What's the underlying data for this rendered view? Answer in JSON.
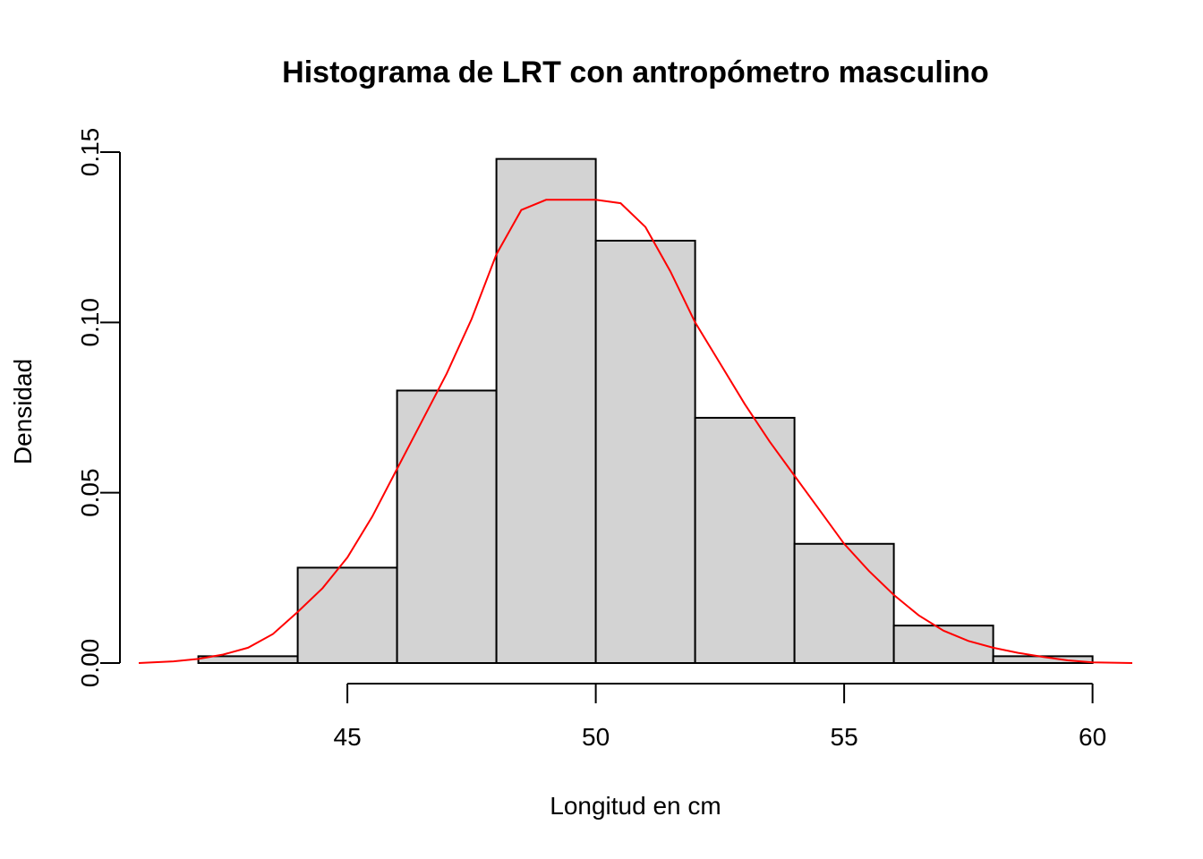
{
  "chart_data": {
    "type": "bar",
    "title": "Histograma de LRT con antropómetro masculino",
    "xlabel": "Longitud en cm",
    "ylabel": "Densidad",
    "xlim": [
      40.8,
      60.8
    ],
    "ylim": [
      0,
      0.15
    ],
    "x_ticks": [
      45,
      50,
      55,
      60
    ],
    "x_tick_labels": [
      "45",
      "50",
      "55",
      "60"
    ],
    "y_ticks": [
      0.0,
      0.05,
      0.1,
      0.15
    ],
    "y_tick_labels": [
      "0.00",
      "0.05",
      "0.10",
      "0.15"
    ],
    "grid": false,
    "bins": [
      {
        "x0": 42,
        "x1": 44,
        "density": 0.002
      },
      {
        "x0": 44,
        "x1": 46,
        "density": 0.028
      },
      {
        "x0": 46,
        "x1": 48,
        "density": 0.08
      },
      {
        "x0": 48,
        "x1": 50,
        "density": 0.148
      },
      {
        "x0": 50,
        "x1": 52,
        "density": 0.124
      },
      {
        "x0": 52,
        "x1": 54,
        "density": 0.072
      },
      {
        "x0": 54,
        "x1": 56,
        "density": 0.035
      },
      {
        "x0": 56,
        "x1": 58,
        "density": 0.011
      },
      {
        "x0": 58,
        "x1": 60,
        "density": 0.002
      }
    ],
    "bar_fill": "#d3d3d3",
    "density_curve": {
      "color": "#ff0000",
      "x": [
        40.8,
        41.5,
        42.0,
        42.5,
        43.0,
        43.5,
        44.0,
        44.5,
        45.0,
        45.5,
        46.0,
        46.5,
        47.0,
        47.5,
        48.0,
        48.5,
        49.0,
        49.5,
        50.0,
        50.5,
        51.0,
        51.5,
        52.0,
        52.5,
        53.0,
        53.5,
        54.0,
        54.5,
        55.0,
        55.5,
        56.0,
        56.5,
        57.0,
        57.5,
        58.0,
        58.5,
        59.0,
        59.5,
        60.0,
        60.8
      ],
      "y": [
        0.0,
        0.0005,
        0.0012,
        0.0025,
        0.0045,
        0.0085,
        0.015,
        0.022,
        0.031,
        0.043,
        0.057,
        0.071,
        0.085,
        0.101,
        0.12,
        0.133,
        0.136,
        0.136,
        0.136,
        0.135,
        0.128,
        0.115,
        0.1,
        0.088,
        0.076,
        0.065,
        0.055,
        0.045,
        0.035,
        0.027,
        0.02,
        0.014,
        0.0095,
        0.0065,
        0.0045,
        0.003,
        0.0018,
        0.0008,
        0.0002,
        0.0
      ]
    }
  }
}
